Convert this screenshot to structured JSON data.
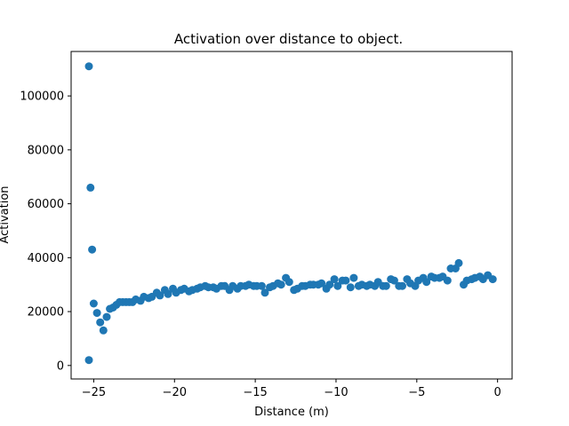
{
  "chart_data": {
    "type": "scatter",
    "title": "Activation over distance to object.",
    "xlabel": "Distance (m)",
    "ylabel": "Activation",
    "xlim": [
      -26.4,
      0.9
    ],
    "ylim": [
      -5000,
      116500
    ],
    "xticks": [
      -25,
      -20,
      -15,
      -10,
      -5,
      0
    ],
    "yticks": [
      0,
      20000,
      40000,
      60000,
      80000,
      100000
    ],
    "grid": false,
    "color": "#1f77b4",
    "series": [
      {
        "x": [
          -25.3,
          -25.2,
          -25.1,
          -25.0,
          -25.3,
          -24.8,
          -24.6,
          -24.4,
          -24.2,
          -24.0,
          -23.8,
          -23.6,
          -23.4,
          -23.2,
          -23.0,
          -22.8,
          -22.6,
          -22.4,
          -22.1,
          -21.9,
          -21.6,
          -21.4,
          -21.1,
          -20.9,
          -20.6,
          -20.4,
          -20.1,
          -19.9,
          -19.6,
          -19.4,
          -19.1,
          -18.9,
          -18.6,
          -18.4,
          -18.1,
          -17.9,
          -17.6,
          -17.4,
          -17.1,
          -16.9,
          -16.6,
          -16.4,
          -16.1,
          -15.9,
          -15.6,
          -15.4,
          -15.1,
          -14.9,
          -14.6,
          -14.4,
          -14.1,
          -13.9,
          -13.6,
          -13.4,
          -13.1,
          -12.9,
          -12.6,
          -12.4,
          -12.1,
          -11.9,
          -11.6,
          -11.4,
          -11.1,
          -10.9,
          -10.6,
          -10.4,
          -10.1,
          -9.9,
          -9.6,
          -9.4,
          -9.1,
          -8.9,
          -8.6,
          -8.4,
          -8.1,
          -7.9,
          -7.6,
          -7.4,
          -7.1,
          -6.9,
          -6.6,
          -6.4,
          -6.1,
          -5.9,
          -5.6,
          -5.4,
          -5.1,
          -4.9,
          -4.6,
          -4.4,
          -4.1,
          -3.9,
          -3.6,
          -3.4,
          -3.1,
          -2.9,
          -2.6,
          -2.4,
          -2.1,
          -1.9,
          -1.6,
          -1.4,
          -1.1,
          -0.9,
          -0.6,
          -0.3
        ],
        "y": [
          111000,
          66000,
          43000,
          23000,
          2000,
          19500,
          16000,
          13000,
          18000,
          21000,
          21500,
          22500,
          23500,
          23500,
          23500,
          23500,
          23500,
          24500,
          24000,
          25500,
          25000,
          25500,
          27000,
          26000,
          28000,
          26500,
          28500,
          27000,
          28000,
          28500,
          27500,
          28000,
          28500,
          29000,
          29500,
          29000,
          29000,
          28500,
          29500,
          29500,
          28000,
          29500,
          28500,
          29500,
          29500,
          30000,
          29500,
          29500,
          29500,
          27000,
          29000,
          29500,
          30500,
          30000,
          32500,
          31000,
          28000,
          28500,
          29500,
          29500,
          30000,
          30000,
          30000,
          30500,
          28500,
          30000,
          32000,
          29500,
          31500,
          31500,
          29000,
          32500,
          29500,
          30000,
          29500,
          30000,
          29500,
          31000,
          29500,
          29500,
          32000,
          31500,
          29500,
          29500,
          32000,
          30500,
          29500,
          31500,
          32500,
          31000,
          33000,
          32500,
          32500,
          33000,
          31500,
          36000,
          36000,
          38000,
          30000,
          31500,
          32000,
          32500,
          33000,
          32000,
          33500,
          32000
        ]
      }
    ]
  }
}
